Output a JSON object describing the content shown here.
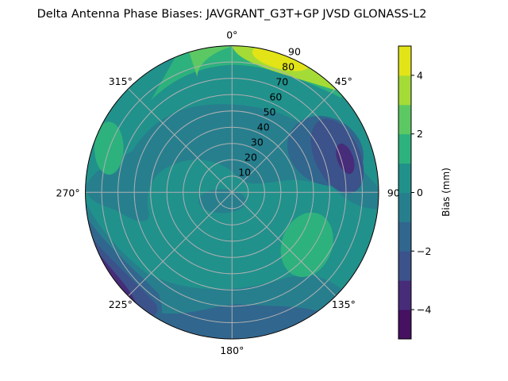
{
  "chart_data": {
    "type": "polar-contour",
    "title": "Delta Antenna Phase Biases: JAVGRANT_G3T+GP JVSD GLONASS-L2",
    "theta_direction": "clockwise",
    "theta_zero": "top",
    "theta_ticks": [
      "0°",
      "45°",
      "90°",
      "135°",
      "180°",
      "225°",
      "270°",
      "315°"
    ],
    "r_ticks": [
      "10",
      "20",
      "30",
      "40",
      "50",
      "60",
      "70",
      "80",
      "90"
    ],
    "r_range": [
      0,
      90
    ],
    "grid": true,
    "levels": [
      -5,
      -4,
      -3,
      -2,
      -1,
      0,
      1,
      2,
      3,
      4,
      5
    ],
    "level_colors": [
      "#451160",
      "#472c7a",
      "#3b528b",
      "#31668e",
      "#277f8e",
      "#21918c",
      "#2db27d",
      "#5cc863",
      "#a5db36",
      "#e2e418"
    ],
    "colorbar": {
      "label": "Bias (mm)",
      "ticks": [
        "4",
        "2",
        "0",
        "−2",
        "−4"
      ],
      "tick_values": [
        4,
        2,
        0,
        -2,
        -4
      ],
      "range": [
        -5,
        5
      ],
      "placement": "right"
    },
    "value_range_observed": [
      -5,
      5
    ]
  }
}
